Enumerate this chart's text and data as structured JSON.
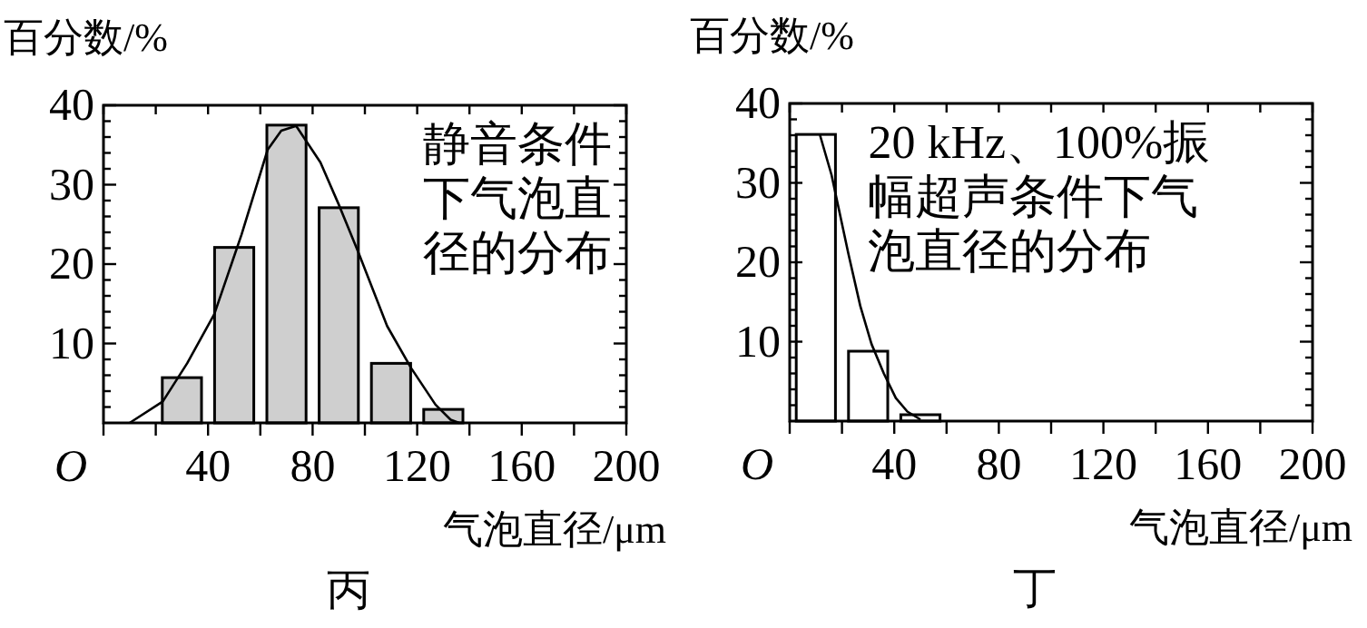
{
  "chart_data": [
    {
      "type": "histogram",
      "ylabel": "百分数/%",
      "xlabel": "气泡直径/μm",
      "annotations": [
        "静音条件",
        "下气泡直",
        "径的分布",
        "丙"
      ],
      "bins": [
        20,
        40,
        60,
        80,
        100,
        120,
        140
      ],
      "values": [
        5.7,
        22.1,
        37.5,
        27.1,
        7.5,
        1.7
      ],
      "color": "#cfcfcf",
      "series": [
        {
          "type": "line",
          "color": "#000000",
          "x": [
            10,
            22.7,
            32,
            42.4,
            52.8,
            62.8,
            68,
            73.7,
            83,
            90,
            97.6,
            108.5,
            117.7,
            127,
            132.8,
            136
          ],
          "values": [
            0,
            2.7,
            7.5,
            13.7,
            23.7,
            34.4,
            36.8,
            37.4,
            32.8,
            27.5,
            21.4,
            12.2,
            6.9,
            2.3,
            0.4,
            0
          ]
        }
      ],
      "xlim": [
        0,
        200
      ],
      "xticks": [
        {
          "value": 0,
          "label": "O"
        },
        {
          "value": 20,
          "label": null
        },
        40,
        {
          "value": 60,
          "label": null
        },
        80,
        {
          "value": 100,
          "label": null
        },
        120,
        {
          "value": 140,
          "label": null
        },
        160,
        {
          "value": 180,
          "label": null
        },
        200
      ],
      "ylim": [
        0,
        40
      ],
      "yticks": [
        {
          "value": 2,
          "label": null
        },
        {
          "value": 4,
          "label": null
        },
        {
          "value": 6,
          "label": null
        },
        {
          "value": 8,
          "label": null
        },
        10,
        {
          "value": 12,
          "label": null
        },
        {
          "value": 14,
          "label": null
        },
        {
          "value": 16,
          "label": null
        },
        {
          "value": 18,
          "label": null
        },
        20,
        {
          "value": 22,
          "label": null
        },
        {
          "value": 24,
          "label": null
        },
        {
          "value": 26,
          "label": null
        },
        {
          "value": 28,
          "label": null
        },
        30,
        {
          "value": 32,
          "label": null
        },
        {
          "value": 34,
          "label": null
        },
        {
          "value": 36,
          "label": null
        },
        {
          "value": 38,
          "label": null
        },
        40
      ]
    },
    {
      "type": "histogram",
      "ylabel": "百分数/%",
      "xlabel": "气泡直径/μm",
      "annotations": [
        "20 kHz、100%振",
        "幅超声条件下气",
        "泡直径的分布",
        "丁"
      ],
      "bins": [
        0,
        20,
        40,
        60
      ],
      "values": [
        36.1,
        8.8,
        0.8
      ],
      "color": "#ffffff",
      "series": [
        {
          "type": "line",
          "color": "#000000",
          "x": [
            11.6,
            16,
            22.5,
            27,
            31.3,
            36,
            40.6,
            45,
            50
          ],
          "values": [
            36,
            31,
            21,
            14.5,
            9.7,
            6,
            2.9,
            1.2,
            0.2
          ]
        }
      ],
      "xlim": [
        0,
        200
      ],
      "xticks": [
        {
          "value": 0,
          "label": "O"
        },
        {
          "value": 20,
          "label": null
        },
        40,
        {
          "value": 60,
          "label": null
        },
        80,
        {
          "value": 100,
          "label": null
        },
        120,
        {
          "value": 140,
          "label": null
        },
        160,
        {
          "value": 180,
          "label": null
        },
        200
      ],
      "ylim": [
        0,
        40
      ],
      "yticks": [
        {
          "value": 2,
          "label": null
        },
        {
          "value": 4,
          "label": null
        },
        {
          "value": 6,
          "label": null
        },
        {
          "value": 8,
          "label": null
        },
        10,
        {
          "value": 12,
          "label": null
        },
        {
          "value": 14,
          "label": null
        },
        {
          "value": 16,
          "label": null
        },
        {
          "value": 18,
          "label": null
        },
        20,
        {
          "value": 22,
          "label": null
        },
        {
          "value": 24,
          "label": null
        },
        {
          "value": 26,
          "label": null
        },
        {
          "value": 28,
          "label": null
        },
        30,
        {
          "value": 32,
          "label": null
        },
        {
          "value": 34,
          "label": null
        },
        {
          "value": 36,
          "label": null
        },
        {
          "value": 38,
          "label": null
        },
        40
      ]
    }
  ]
}
